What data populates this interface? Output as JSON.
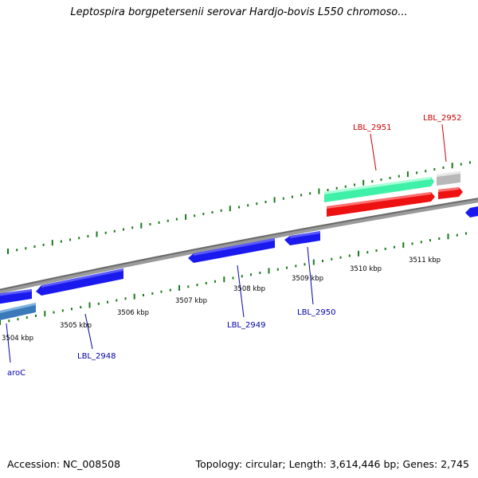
{
  "title": "Leptospira borgpetersenii serovar Hardjo-bovis L550 chromoso...",
  "footer": {
    "accession": "Accession: NC_008508",
    "summary": "Topology: circular; Length: 3,614,446 bp; Genes: 2,745"
  },
  "scale_labels": [
    "3504 kbp",
    "3505 kbp",
    "3506 kbp",
    "3507 kbp",
    "3508 kbp",
    "3509 kbp",
    "3510 kbp",
    "3511 kbp"
  ],
  "gene_labels": [
    {
      "text": "aroC",
      "strand": "reverse",
      "color": "#0000aa"
    },
    {
      "text": "LBL_2948",
      "strand": "reverse",
      "color": "#0000aa"
    },
    {
      "text": "LBL_2949",
      "strand": "reverse",
      "color": "#0000aa"
    },
    {
      "text": "LBL_2950",
      "strand": "reverse",
      "color": "#0000aa"
    },
    {
      "text": "LBL_2951",
      "strand": "forward",
      "color": "#cc0000"
    },
    {
      "text": "LBL_2952",
      "strand": "forward",
      "color": "#cc0000"
    }
  ],
  "colors": {
    "backbone": "#808080",
    "gene_blue": "#1a1aee",
    "gene_steelblue": "#3a7ab8",
    "rrna_green": "#3ef0a8",
    "gene_red": "#ee1111",
    "pseudo_gray": "#b8b8b8",
    "tick_green": "#1a7a1a",
    "label_blue": "#0000aa",
    "label_red": "#cc0000"
  }
}
